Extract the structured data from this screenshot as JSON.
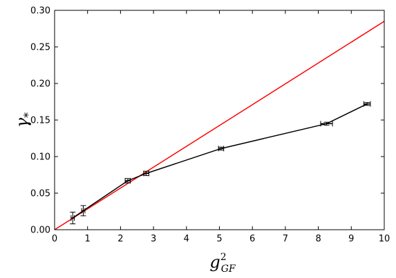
{
  "chart_data": {
    "type": "line",
    "title": "",
    "xlabel": {
      "base": "g",
      "sup": "2",
      "sub": "GF"
    },
    "ylabel": {
      "base": "γ",
      "sub": "*"
    },
    "xlim": [
      0,
      10
    ],
    "ylim": [
      0,
      0.3
    ],
    "x_ticks": [
      0,
      1,
      2,
      3,
      4,
      5,
      6,
      7,
      8,
      9,
      10
    ],
    "x_tick_labels": [
      "0",
      "1",
      "2",
      "3",
      "4",
      "5",
      "6",
      "7",
      "8",
      "9",
      "10"
    ],
    "y_ticks": [
      0,
      0.05,
      0.1,
      0.15,
      0.2,
      0.25,
      0.3
    ],
    "y_tick_labels": [
      "0.00",
      "0.05",
      "0.10",
      "0.15",
      "0.20",
      "0.25",
      "0.30"
    ],
    "grid": false,
    "series": [
      {
        "color": "#000000",
        "style": "line-with-errorbars",
        "points": [
          {
            "x": 0.55,
            "y": 0.016,
            "xerr": 0.05,
            "yerr": 0.008
          },
          {
            "x": 0.87,
            "y": 0.026,
            "xerr": 0.05,
            "yerr": 0.007
          },
          {
            "x": 2.22,
            "y": 0.067,
            "xerr": 0.08,
            "yerr": 0.003
          },
          {
            "x": 2.78,
            "y": 0.077,
            "xerr": 0.08,
            "yerr": 0.003
          },
          {
            "x": 5.05,
            "y": 0.111,
            "xerr": 0.08,
            "yerr": 0.002
          },
          {
            "x": 8.25,
            "y": 0.145,
            "xerr": 0.18,
            "yerr": 0.002
          },
          {
            "x": 9.48,
            "y": 0.172,
            "xerr": 0.1,
            "yerr": 0.002
          }
        ]
      },
      {
        "color": "#ff0000",
        "style": "line",
        "points": [
          {
            "x": 0,
            "y": 0.0
          },
          {
            "x": 10,
            "y": 0.285
          }
        ]
      }
    ]
  }
}
